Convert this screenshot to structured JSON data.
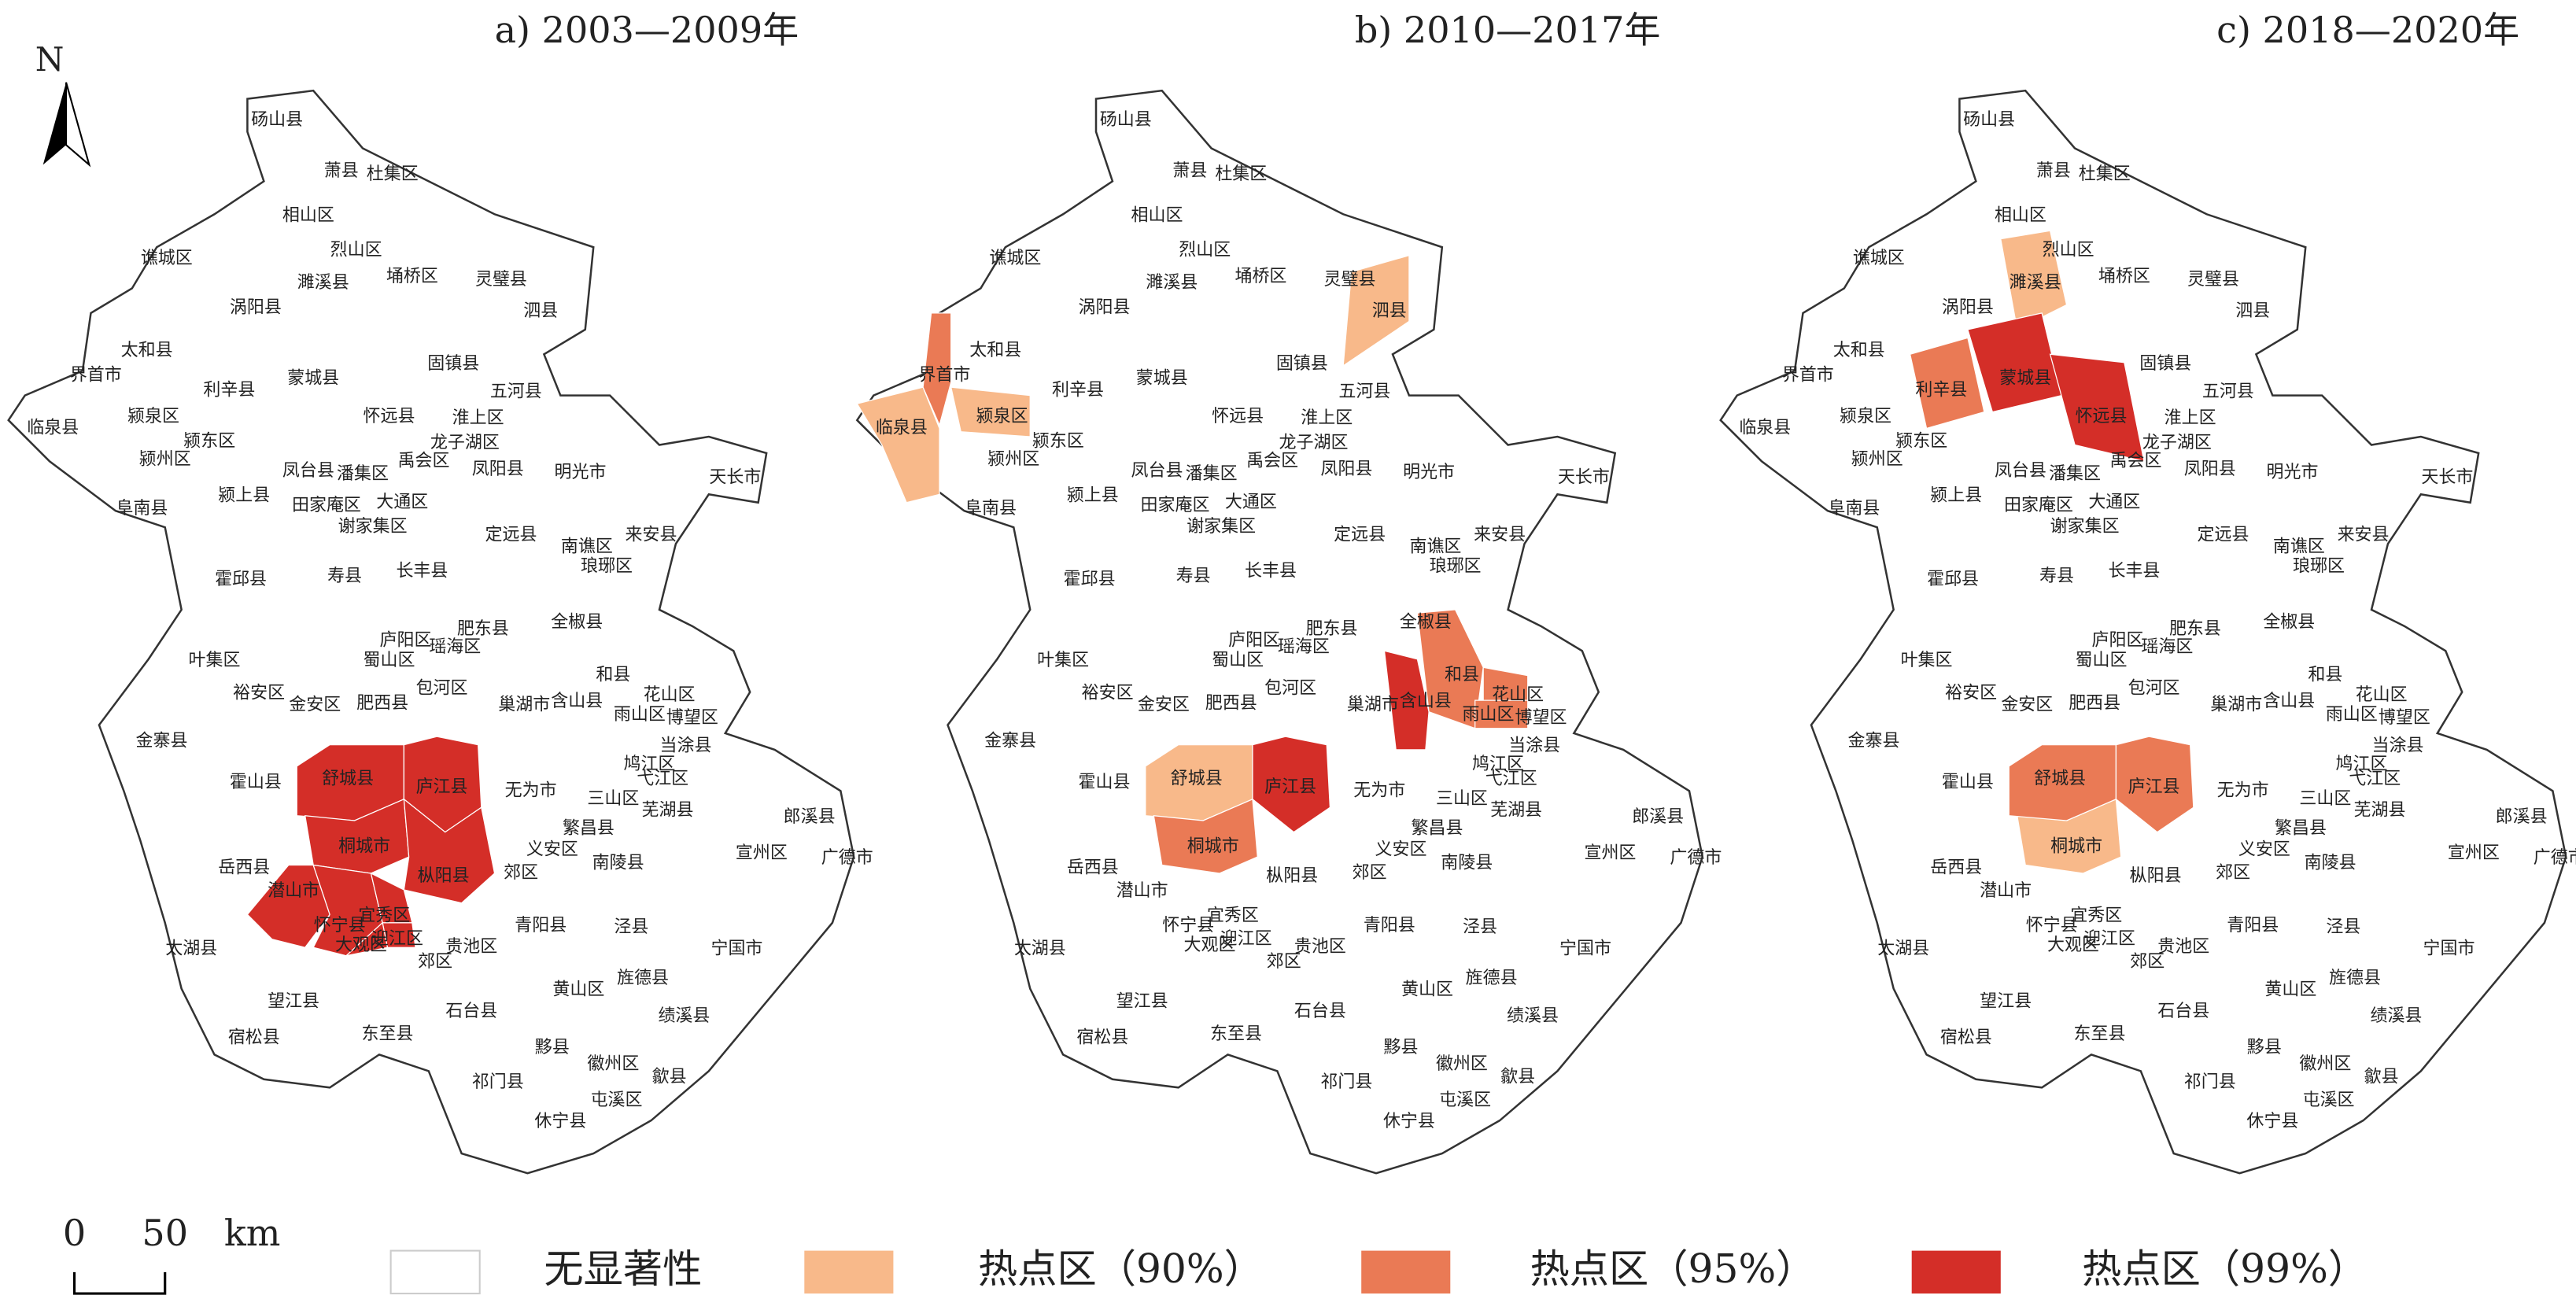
{
  "north": "N",
  "scale_bar": {
    "start": "0",
    "end": "50",
    "unit": "km"
  },
  "legend": [
    {
      "label": "无显著性",
      "color": "#ffffff"
    },
    {
      "label": "热点区（90%）",
      "color": "#f8b98a"
    },
    {
      "label": "热点区（95%）",
      "color": "#ea7a55"
    },
    {
      "label": "热点区（99%）",
      "color": "#d42e28"
    }
  ],
  "counties": [
    "砀山县",
    "萧县",
    "杜集区",
    "相山区",
    "烈山区",
    "濉溪县",
    "埇桥区",
    "灵璧县",
    "谯城区",
    "涡阳县",
    "泗县",
    "固镇县",
    "太和县",
    "蒙城县",
    "五河县",
    "界首市",
    "利辛县",
    "颍泉区",
    "颍东区",
    "怀远县",
    "淮上区",
    "临泉县",
    "颍州区",
    "龙子湖区",
    "禹会区",
    "凤台县",
    "潘集区",
    "大通区",
    "凤阳县",
    "明光市",
    "天长市",
    "阜南县",
    "颍上县",
    "田家庵区",
    "谢家集区",
    "定远县",
    "南谯区",
    "来安县",
    "霍邱县",
    "寿县",
    "长丰县",
    "琅琊区",
    "全椒县",
    "肥东县",
    "庐阳区",
    "瑶海区",
    "蜀山区",
    "叶集区",
    "包河区",
    "和县",
    "花山区",
    "裕安区",
    "金安区",
    "肥西县",
    "巢湖市",
    "含山县",
    "雨山区",
    "博望区",
    "金寨县",
    "当涂县",
    "霍山县",
    "鸠江区",
    "无为市",
    "弋江区",
    "三山区",
    "芜湖县",
    "郎溪县",
    "繁昌县",
    "岳西县",
    "义安区",
    "郊区",
    "南陵县",
    "宣州区",
    "广德市",
    "潜山市",
    "怀宁县",
    "宜秀区",
    "迎江区",
    "大观区",
    "郊区",
    "贵池区",
    "青阳县",
    "泾县",
    "宁国市",
    "太湖县",
    "望江县",
    "旌德县",
    "黄山区",
    "石台县",
    "绩溪县",
    "宿松县",
    "东至县",
    "黟县",
    "徽州区",
    "歙县",
    "祁门县",
    "屯溪区",
    "休宁县",
    "舒城县",
    "庐江县",
    "桐城市",
    "枞阳县"
  ],
  "maps": [
    {
      "title": "a) 2003—2009年",
      "hot_classes": [
        [],
        [],
        [],
        [
          98,
          99,
          100,
          101,
          74,
          75,
          76,
          77,
          78
        ]
      ]
    },
    {
      "title": "b) 2010—2017年",
      "hot_classes": [
        [],
        [
          21,
          17,
          10,
          98
        ],
        [
          15,
          100,
          49,
          50,
          56
        ],
        [
          99,
          55
        ]
      ]
    },
    {
      "title": "c) 2018—2020年",
      "hot_classes": [
        [],
        [
          5,
          100
        ],
        [
          16,
          98,
          99
        ],
        [
          13,
          19
        ]
      ]
    }
  ]
}
